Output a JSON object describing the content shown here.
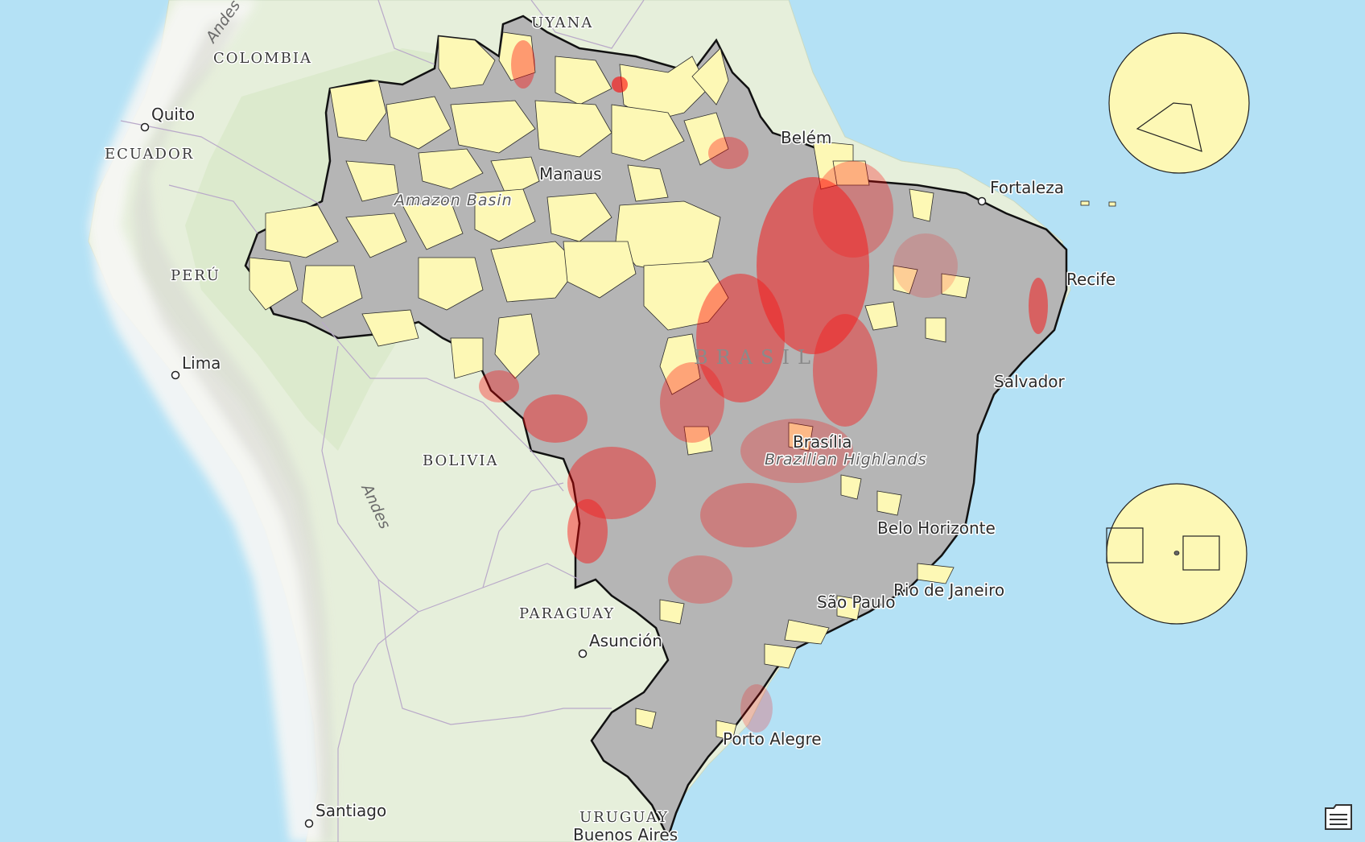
{
  "countries": {
    "guyana": "UYANA",
    "colombia": "COLOMBIA",
    "ecuador": "ECUADOR",
    "peru": "PERÚ",
    "bolivia": "BOLIVIA",
    "paraguay": "PARAGUAY",
    "uruguay": "URUGUAY",
    "brazil": "BRASIL"
  },
  "cities": {
    "quito": "Quito",
    "lima": "Lima",
    "manaus": "Manaus",
    "belem": "Belém",
    "fortaleza": "Fortaleza",
    "recife": "Recife",
    "salvador": "Salvador",
    "brasilia": "Brasília",
    "belo_horizonte": "Belo Horizonte",
    "rio": "Rio de Janeiro",
    "sao_paulo": "São Paulo",
    "asuncion": "Asunción",
    "porto_alegre": "Porto Alegre",
    "santiago": "Santiago",
    "buenos_aires": "Buenos Aires"
  },
  "relief": {
    "amazon_basin": "Amazon Basin",
    "brazilian_highlands": "Brazilian Highlands",
    "andes_north": "Andes",
    "andes_south": "Andes"
  },
  "colors": {
    "ocean": "#b4e1f5",
    "land": "#e4efd9",
    "brazil_fill": "#b5b5b5",
    "protected_area": "#fdf8b5",
    "fire_points": "#ff0000",
    "border": "#000000"
  },
  "icons": {
    "legend": "legend-icon"
  }
}
